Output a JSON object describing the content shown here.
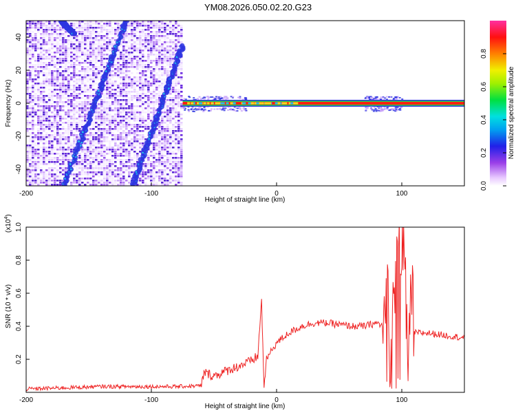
{
  "title": "YM08.2026.050.02.20.G23",
  "colors": {
    "snr_line": "#ee2222",
    "spec_band": "#ff2010",
    "spec_purple": "#6a2adf",
    "spec_blue": "#2e35e0",
    "spec_cyan": "#20c8e8",
    "spec_green": "#30d040",
    "frame": "#000000"
  },
  "chart_data": [
    {
      "type": "heatmap",
      "title": "YM08.2026.050.02.20.G23",
      "xlabel": "Height of straight line (km)",
      "ylabel": "Frequency (Hz)",
      "xlim": [
        -200,
        150
      ],
      "ylim": [
        -50,
        50
      ],
      "x_ticks": [
        -200,
        -100,
        0,
        100
      ],
      "x_tick_labels": [
        "-200",
        "-100",
        "0",
        "100"
      ],
      "y_ticks": [
        -40,
        -20,
        0,
        20,
        40
      ],
      "y_tick_labels": [
        "-40",
        "-20",
        "0",
        "20",
        "40"
      ],
      "colorbar": {
        "label": "Normalized spectral amplitude",
        "range": [
          0,
          1
        ],
        "ticks": [
          0,
          0.2,
          0.4,
          0.6,
          0.8
        ],
        "tick_labels": [
          "0.0",
          "0.2",
          "0.4",
          "0.6",
          "0.8"
        ]
      },
      "regions": {
        "noisy_region_x": [
          -200,
          -75
        ],
        "band_center_hz": 0,
        "band_x": [
          -75,
          150
        ],
        "band_spread_x": [
          [
            -75,
            -25
          ],
          [
            70,
            100
          ]
        ]
      },
      "diagonal_features": [
        {
          "x": [
            -170,
            -120
          ],
          "y": [
            -50,
            50
          ]
        },
        {
          "x": [
            -115,
            -75
          ],
          "y": [
            -50,
            35
          ]
        },
        {
          "x": [
            -172,
            -162
          ],
          "y": [
            50,
            42
          ]
        }
      ]
    },
    {
      "type": "line",
      "xlabel": "Height of straight line (km)",
      "ylabel": "SNR (10 * v/v)",
      "y_scale_label": "(x10",
      "y_scale_exponent": "4",
      "y_scale_suffix": ")",
      "xlim": [
        -200,
        150
      ],
      "ylim": [
        0,
        1.0
      ],
      "x_ticks": [
        -200,
        -100,
        0,
        100
      ],
      "x_tick_labels": [
        "-200",
        "-100",
        "0",
        "100"
      ],
      "y_ticks": [
        0.2,
        0.4,
        0.6,
        0.8,
        1.0
      ],
      "y_tick_labels": [
        "0.2",
        "0.4",
        "0.6",
        "0.8",
        "1.0"
      ],
      "series": [
        {
          "name": "SNR",
          "x": [
            -200,
            -180,
            -160,
            -140,
            -120,
            -100,
            -80,
            -60,
            -58,
            -50,
            -40,
            -30,
            -20,
            -15,
            -12,
            -10,
            -8,
            -5,
            0,
            10,
            20,
            30,
            40,
            50,
            60,
            70,
            80,
            85,
            88,
            92,
            96,
            100,
            104,
            108,
            110,
            115,
            120,
            130,
            140,
            150
          ],
          "y": [
            0.02,
            0.025,
            0.03,
            0.035,
            0.035,
            0.035,
            0.035,
            0.04,
            0.12,
            0.1,
            0.13,
            0.16,
            0.19,
            0.22,
            0.55,
            0.03,
            0.2,
            0.24,
            0.3,
            0.36,
            0.4,
            0.42,
            0.42,
            0.41,
            0.4,
            0.4,
            0.42,
            0.4,
            0.6,
            0.35,
            0.7,
            0.95,
            0.4,
            0.6,
            0.36,
            0.36,
            0.36,
            0.35,
            0.34,
            0.33
          ]
        }
      ]
    }
  ]
}
